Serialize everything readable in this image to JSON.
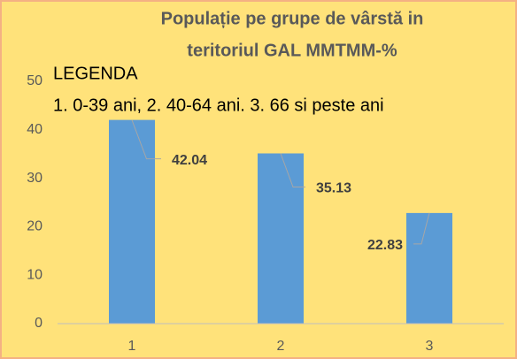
{
  "chart_data": {
    "type": "bar",
    "title": [
      "Populație pe grupe de vârstă in",
      "teritoriul GAL MMTMM-%"
    ],
    "annotations": [
      "LEGENDA",
      "1. 0-39 ani, 2. 40-64 ani. 3. 66 si peste ani"
    ],
    "categories": [
      "1",
      "2",
      "3"
    ],
    "values": [
      42.04,
      35.13,
      22.83
    ],
    "color": "#5b9bd5",
    "ylim": [
      0,
      50
    ],
    "yticks": [
      0,
      10,
      20,
      30,
      40,
      50
    ],
    "grid": false
  }
}
